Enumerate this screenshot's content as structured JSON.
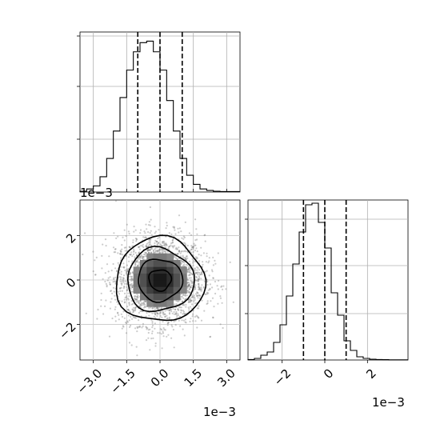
{
  "chart_data": [
    {
      "type": "bar",
      "panel": "top-left marginal histogram (x)",
      "x_range": [
        -0.0036,
        0.0036
      ],
      "bins_edges_start": -0.0036,
      "bin_width": 0.0003,
      "values": [
        0.5,
        2,
        4,
        10,
        22,
        40,
        62,
        80,
        92,
        98,
        99,
        92,
        80,
        60,
        40,
        22,
        11,
        5,
        2,
        1,
        0.5,
        0.3
      ],
      "ylim": [
        0,
        105
      ],
      "quantile_lines": [
        -0.001,
        0.0,
        0.001
      ],
      "grid": true,
      "x_offset_text": "1e−3"
    },
    {
      "type": "heatmap",
      "panel": "bottom-left 2D density (x vs y)",
      "xlim": [
        -0.0036,
        0.0036
      ],
      "ylim": [
        -0.0036,
        0.0036
      ],
      "xticks": [
        -3.0,
        -1.5,
        0.0,
        1.5,
        3.0
      ],
      "xtick_labels": [
        "−3.0",
        "−1.5",
        "0.0",
        "1.5",
        "3.0"
      ],
      "yticks": [
        -2,
        0,
        2
      ],
      "ytick_labels": [
        "−2",
        "0",
        "2"
      ],
      "contour_levels_sigma": [
        0.5,
        1.0,
        1.5,
        2.0
      ],
      "x_offset_text": "1e−3",
      "y_offset_text": "1e−3",
      "grid": true
    },
    {
      "type": "bar",
      "panel": "bottom-right marginal histogram (y)",
      "x_range": [
        -0.0036,
        0.0039
      ],
      "bins_edges_start": -0.0036,
      "bin_width": 0.0003,
      "values": [
        0.3,
        1,
        3,
        5,
        11,
        22,
        40,
        60,
        80,
        97,
        98,
        86,
        70,
        42,
        28,
        12,
        6,
        2,
        1,
        0.5,
        0.3,
        0.2,
        0.1,
        0.1,
        0.1
      ],
      "ylim": [
        0,
        100
      ],
      "xticks": [
        -2,
        0,
        2
      ],
      "xtick_labels": [
        "−2",
        "0",
        "2"
      ],
      "quantile_lines": [
        -0.001,
        0.0,
        0.001
      ],
      "grid": true,
      "x_offset_text": "1e−3"
    }
  ]
}
